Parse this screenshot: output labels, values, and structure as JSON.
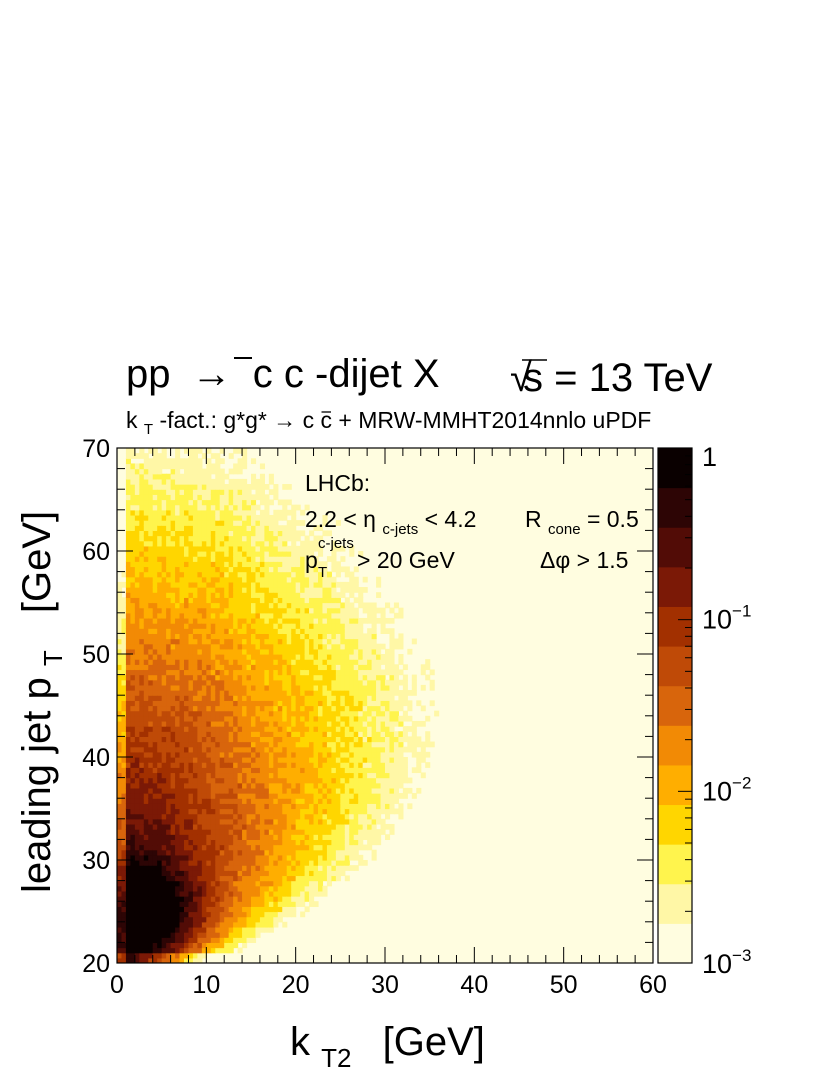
{
  "header": {
    "process_pre": "pp",
    "process_arrow": "→",
    "process_c": "c",
    "process_cbar": "c",
    "process_post": "-dijet X",
    "sqrt_sign": "√",
    "energy": "s = 13 TeV",
    "subtitle_k": "k",
    "subtitle_T": "T",
    "subtitle_rest": "-fact.: g*g* → c",
    "subtitle_cbar": "c",
    "subtitle_end": " + MRW-MMHT2014nnlo uPDF"
  },
  "annotation": {
    "experiment": "LHCb:",
    "eta_pre": "2.2 < η",
    "eta_sub": "c-jets",
    "eta_post": " < 4.2",
    "rcone_R": "R",
    "rcone_sub": "cone",
    "rcone_post": " = 0.5",
    "pt_p": "p",
    "pt_sub": "T",
    "pt_sup": "c-jets",
    "pt_post": " > 20 GeV",
    "dphi": "Δφ > 1.5"
  },
  "chart_data": {
    "type": "heatmap",
    "title": "",
    "xlabel_main": "k",
    "xlabel_sub": "T2",
    "xlabel_unit": "[GeV]",
    "ylabel_main": "leading jet p",
    "ylabel_sub": "T",
    "ylabel_unit": "[GeV]",
    "xlim": [
      0,
      60
    ],
    "ylim": [
      20,
      70
    ],
    "x_ticks": [
      "0",
      "10",
      "20",
      "30",
      "40",
      "50",
      "60"
    ],
    "y_ticks": [
      "20",
      "30",
      "40",
      "50",
      "60",
      "70"
    ],
    "zscale": "log",
    "zlim": [
      0.001,
      1
    ],
    "z_ticks": [
      {
        "base": "1",
        "exp": ""
      },
      {
        "base": "10",
        "exp": "−1"
      },
      {
        "base": "10",
        "exp": "−2"
      },
      {
        "base": "10",
        "exp": "−3"
      }
    ],
    "palette": [
      "#fffde0",
      "#fff7a6",
      "#fff44d",
      "#ffd600",
      "#ffae00",
      "#f28a05",
      "#d8650c",
      "#bf4a07",
      "#a23000",
      "#7b1906",
      "#520c06",
      "#2d0505",
      "#0a0000"
    ],
    "distribution": {
      "peak_x": 4,
      "peak_y": 25,
      "peak_value": 1,
      "floor_value": 0.001
    }
  }
}
